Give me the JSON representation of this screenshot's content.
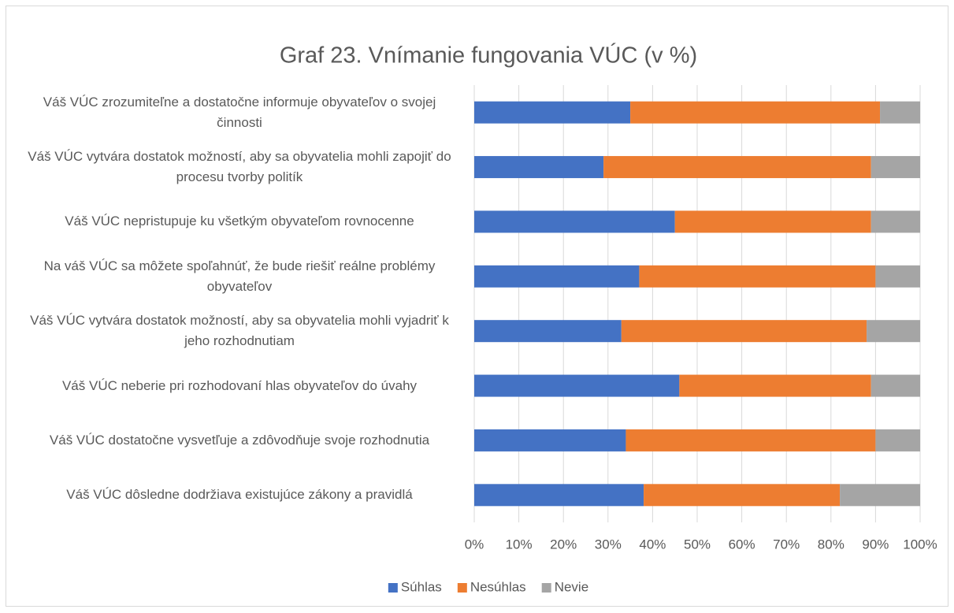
{
  "chart_data": {
    "type": "stacked_barh",
    "title": "Graf 23. Vnímanie fungovania VÚC (v %)",
    "categories": [
      "Váš VÚC zrozumiteľne a dostatočne informuje obyvateľov o svojej činnosti",
      "Váš VÚC vytvára dostatok možností, aby sa obyvatelia mohli zapojiť do procesu tvorby politík",
      "Váš VÚC nepristupuje ku všetkým obyvateľom rovnocenne",
      "Na váš VÚC sa môžete spoľahnúť, že bude riešiť reálne problémy obyvateľov",
      "Váš VÚC vytvára dostatok možností, aby sa obyvatelia mohli vyjadriť k jeho rozhodnutiam",
      "Váš VÚC neberie pri rozhodovaní hlas obyvateľov do úvahy",
      "Váš VÚC dostatočne vysvetľuje a zdôvodňuje svoje rozhodnutia",
      "Váš VÚC dôsledne dodržiava existujúce zákony a pravidlá"
    ],
    "series": [
      {
        "name": "Súhlas",
        "color": "#4472c4",
        "values": [
          35,
          29,
          45,
          37,
          33,
          46,
          34,
          38
        ]
      },
      {
        "name": "Nesúhlas",
        "color": "#ed7d31",
        "values": [
          56,
          60,
          44,
          53,
          55,
          43,
          56,
          44
        ]
      },
      {
        "name": "Nevie",
        "color": "#a5a5a5",
        "values": [
          9,
          11,
          11,
          10,
          12,
          11,
          10,
          18
        ]
      }
    ],
    "xlim": [
      0,
      100
    ],
    "xticks": [
      {
        "value": 0,
        "label": "0%"
      },
      {
        "value": 10,
        "label": "10%"
      },
      {
        "value": 20,
        "label": "20%"
      },
      {
        "value": 30,
        "label": "30%"
      },
      {
        "value": 40,
        "label": "40%"
      },
      {
        "value": 50,
        "label": "50%"
      },
      {
        "value": 60,
        "label": "60%"
      },
      {
        "value": 70,
        "label": "70%"
      },
      {
        "value": 80,
        "label": "80%"
      },
      {
        "value": 90,
        "label": "90%"
      },
      {
        "value": 100,
        "label": "100%"
      }
    ],
    "grid": true,
    "legend": "bottom"
  }
}
